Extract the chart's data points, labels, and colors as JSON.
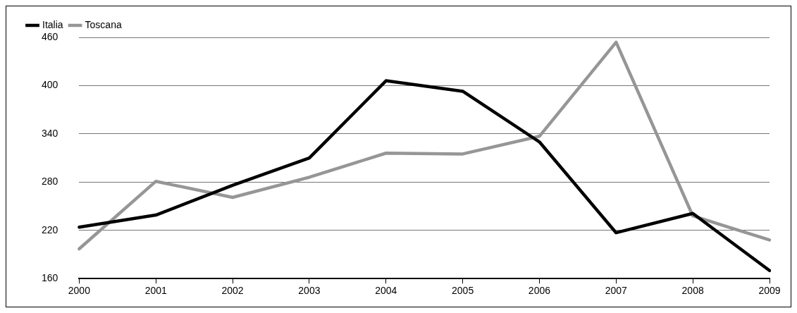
{
  "chart_data": {
    "type": "line",
    "categories": [
      "2000",
      "2001",
      "2002",
      "2003",
      "2004",
      "2005",
      "2006",
      "2007",
      "2008",
      "2009"
    ],
    "series": [
      {
        "name": "Italia",
        "color": "#000000",
        "values": [
          224,
          239,
          276,
          310,
          406,
          393,
          330,
          217,
          241,
          170
        ]
      },
      {
        "name": "Toscana",
        "color": "#969696",
        "values": [
          197,
          281,
          261,
          286,
          316,
          315,
          337,
          454,
          238,
          208
        ]
      }
    ],
    "ylim": [
      160,
      460
    ],
    "yticks": [
      160,
      220,
      280,
      340,
      400,
      460
    ],
    "grid": "y",
    "legend": "top left",
    "marker": "none",
    "line_style": "solid"
  }
}
